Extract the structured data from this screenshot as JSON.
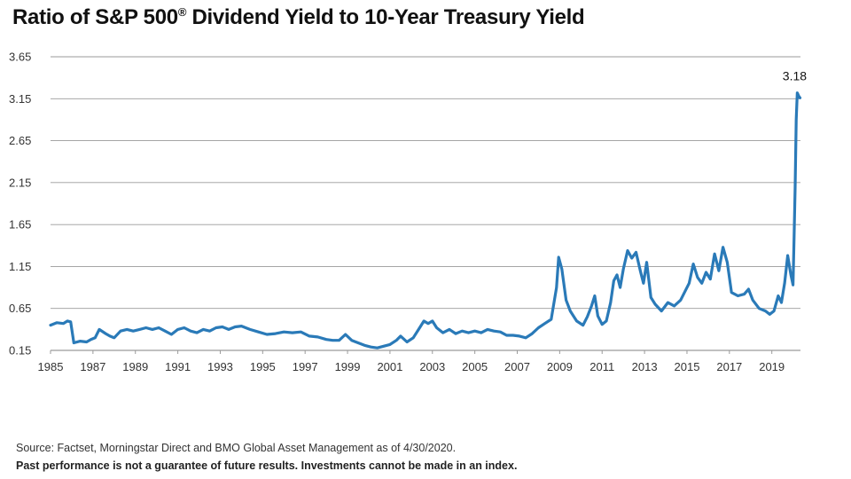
{
  "chart_data": {
    "type": "line",
    "title": "Ratio of S&P 500",
    "title_mark": "®",
    "title_rest": " Dividend Yield to 10-Year Treasury Yield",
    "ylim": [
      0.15,
      3.65
    ],
    "y_ticks": [
      "3.65",
      "3.15",
      "2.65",
      "2.15",
      "1.65",
      "1.15",
      "0.65",
      "0.15"
    ],
    "x_ticks": [
      "1985",
      "1987",
      "1989",
      "1991",
      "1993",
      "1995",
      "1997",
      "1999",
      "2001",
      "2003",
      "2005",
      "2007",
      "2009",
      "2011",
      "2013",
      "2015",
      "2017",
      "2019"
    ],
    "xlim": [
      1985.0,
      2020.35
    ],
    "grid": "horizontal",
    "line_color": "#2a7ab8",
    "grid_color": "#9a9a9a",
    "peak_annotation": {
      "label": "3.18",
      "x": 2020.2,
      "y": 3.18
    },
    "series": [
      {
        "x": [
          1985.0,
          1985.3,
          1985.6,
          1985.8,
          1985.95,
          1986.1,
          1986.4,
          1986.7,
          1986.9,
          1987.1,
          1987.3,
          1987.6,
          1987.8,
          1988.0,
          1988.3,
          1988.6,
          1988.9,
          1989.2,
          1989.5,
          1989.8,
          1990.1,
          1990.4,
          1990.7,
          1991.0,
          1991.3,
          1991.6,
          1991.9,
          1992.2,
          1992.5,
          1992.8,
          1993.1,
          1993.4,
          1993.7,
          1994.0,
          1994.4,
          1994.8,
          1995.2,
          1995.6,
          1996.0,
          1996.4,
          1996.8,
          1997.2,
          1997.6,
          1998.0,
          1998.3,
          1998.6,
          1998.9,
          1999.2,
          1999.5,
          1999.8,
          2000.1,
          2000.4,
          2000.7,
          2001.0,
          2001.3,
          2001.5,
          2001.8,
          2002.1,
          2002.4,
          2002.6,
          2002.8,
          2003.0,
          2003.2,
          2003.5,
          2003.8,
          2004.1,
          2004.4,
          2004.7,
          2005.0,
          2005.3,
          2005.6,
          2005.9,
          2006.2,
          2006.5,
          2006.8,
          2007.1,
          2007.4,
          2007.7,
          2008.0,
          2008.3,
          2008.6,
          2008.85,
          2008.95,
          2009.1,
          2009.3,
          2009.5,
          2009.8,
          2010.1,
          2010.3,
          2010.5,
          2010.65,
          2010.8,
          2011.0,
          2011.2,
          2011.4,
          2011.55,
          2011.7,
          2011.85,
          2012.0,
          2012.2,
          2012.4,
          2012.6,
          2012.8,
          2012.95,
          2013.1,
          2013.3,
          2013.5,
          2013.8,
          2014.1,
          2014.4,
          2014.7,
          2014.9,
          2015.1,
          2015.3,
          2015.5,
          2015.7,
          2015.9,
          2016.1,
          2016.3,
          2016.5,
          2016.7,
          2016.9,
          2017.1,
          2017.4,
          2017.7,
          2017.9,
          2018.1,
          2018.4,
          2018.7,
          2018.9,
          2019.1,
          2019.3,
          2019.45,
          2019.6,
          2019.75,
          2019.9,
          2020.0,
          2020.05,
          2020.1,
          2020.15,
          2020.2,
          2020.27,
          2020.33
        ],
        "values": [
          0.45,
          0.48,
          0.47,
          0.5,
          0.49,
          0.24,
          0.26,
          0.25,
          0.28,
          0.3,
          0.4,
          0.35,
          0.32,
          0.3,
          0.38,
          0.4,
          0.38,
          0.4,
          0.42,
          0.4,
          0.42,
          0.38,
          0.34,
          0.4,
          0.42,
          0.38,
          0.36,
          0.4,
          0.38,
          0.42,
          0.43,
          0.4,
          0.43,
          0.44,
          0.4,
          0.37,
          0.34,
          0.35,
          0.37,
          0.36,
          0.37,
          0.32,
          0.31,
          0.28,
          0.27,
          0.27,
          0.34,
          0.27,
          0.24,
          0.21,
          0.19,
          0.18,
          0.2,
          0.22,
          0.27,
          0.32,
          0.25,
          0.3,
          0.42,
          0.5,
          0.47,
          0.5,
          0.42,
          0.36,
          0.4,
          0.35,
          0.38,
          0.36,
          0.38,
          0.36,
          0.4,
          0.38,
          0.37,
          0.33,
          0.33,
          0.32,
          0.3,
          0.35,
          0.42,
          0.47,
          0.52,
          0.9,
          1.26,
          1.12,
          0.75,
          0.62,
          0.5,
          0.45,
          0.55,
          0.68,
          0.8,
          0.56,
          0.46,
          0.5,
          0.72,
          0.98,
          1.05,
          0.9,
          1.12,
          1.34,
          1.25,
          1.32,
          1.1,
          0.95,
          1.2,
          0.78,
          0.7,
          0.62,
          0.72,
          0.68,
          0.75,
          0.85,
          0.95,
          1.18,
          1.02,
          0.95,
          1.08,
          1.0,
          1.3,
          1.1,
          1.38,
          1.2,
          0.84,
          0.8,
          0.82,
          0.88,
          0.75,
          0.65,
          0.62,
          0.58,
          0.62,
          0.8,
          0.72,
          0.95,
          1.28,
          1.05,
          0.93,
          1.5,
          2.1,
          2.9,
          3.22,
          3.18,
          3.16
        ]
      }
    ]
  },
  "footer": {
    "source": "Source: Factset, Morningstar Direct and BMO Global Asset Management as of 4/30/2020.",
    "disclaimer": "Past performance is not a guarantee of future results. Investments cannot be made in an index."
  }
}
